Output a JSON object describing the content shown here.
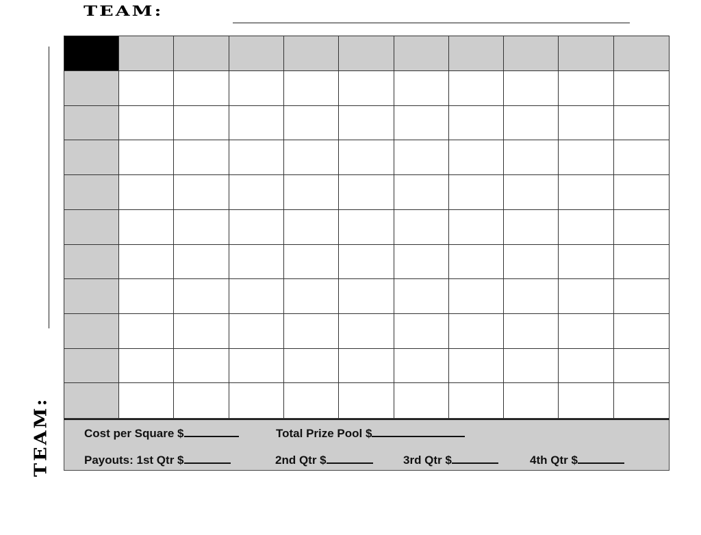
{
  "header": {
    "team_label": "TEAM:"
  },
  "side": {
    "team_label": "TEAM:"
  },
  "grid": {
    "rows": 10,
    "cols": 10,
    "header_color": "#cdcdcd",
    "corner_color": "#000000"
  },
  "footer": {
    "cost_per_square": "Cost per Square $",
    "total_prize_pool": "Total Prize Pool $",
    "payout_1st": "Payouts: 1st Qtr $",
    "payout_2nd": "2nd Qtr $",
    "payout_3rd": "3rd Qtr $",
    "payout_4th": "4th Qtr $"
  }
}
